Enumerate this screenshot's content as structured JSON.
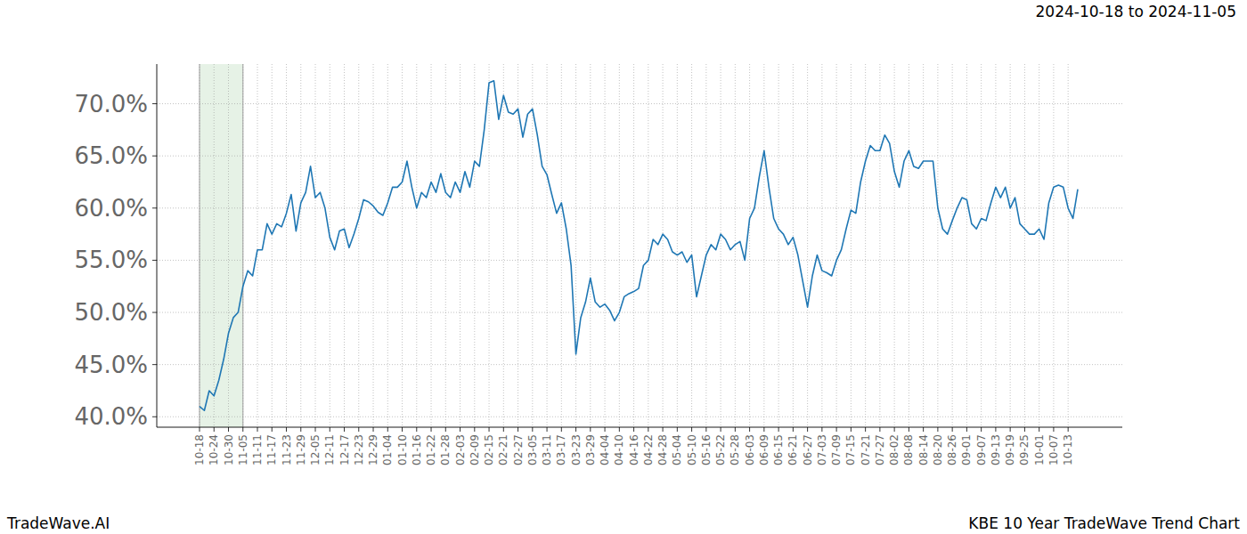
{
  "chart_data": {
    "type": "line",
    "title": "KBE 10 Year TradeWave Trend Chart",
    "subtitle": "2024-10-18 to 2024-11-05",
    "annotations": [
      "TradeWave.AI"
    ],
    "categories": [
      "10-18",
      null,
      null,
      "10-24",
      null,
      null,
      "10-30",
      null,
      null,
      "11-05",
      null,
      null,
      "11-11",
      null,
      null,
      "11-17",
      null,
      null,
      "11-23",
      null,
      null,
      "11-29",
      null,
      null,
      "12-05",
      null,
      null,
      "12-11",
      null,
      null,
      "12-17",
      null,
      null,
      "12-23",
      null,
      null,
      "12-29",
      null,
      null,
      "01-04",
      null,
      null,
      "01-10",
      null,
      null,
      "01-16",
      null,
      null,
      "01-22",
      null,
      null,
      "01-28",
      null,
      null,
      "02-03",
      null,
      null,
      "02-09",
      null,
      null,
      "02-15",
      null,
      null,
      "02-21",
      null,
      null,
      "02-27",
      null,
      null,
      "03-05",
      null,
      null,
      "03-11",
      null,
      null,
      "03-17",
      null,
      null,
      "03-23",
      null,
      null,
      "03-29",
      null,
      null,
      "04-04",
      null,
      null,
      "04-10",
      null,
      null,
      "04-16",
      null,
      null,
      "04-22",
      null,
      null,
      "04-28",
      null,
      null,
      "05-04",
      null,
      null,
      "05-10",
      null,
      null,
      "05-16",
      null,
      null,
      "05-22",
      null,
      null,
      "05-28",
      null,
      null,
      "06-03",
      null,
      null,
      "06-09",
      null,
      null,
      "06-15",
      null,
      null,
      "06-21",
      null,
      null,
      "06-27",
      null,
      null,
      "07-03",
      null,
      null,
      "07-09",
      null,
      null,
      "07-15",
      null,
      null,
      "07-21",
      null,
      null,
      "07-27",
      null,
      null,
      "08-02",
      null,
      null,
      "08-08",
      null,
      null,
      "08-14",
      null,
      null,
      "08-20",
      null,
      null,
      "08-26",
      null,
      null,
      "09-01",
      null,
      null,
      "09-07",
      null,
      null,
      "09-13",
      null,
      null,
      "09-19",
      null,
      null,
      "09-25",
      null,
      null,
      "10-01",
      null,
      null,
      "10-07",
      null,
      null,
      "10-13",
      null,
      null
    ],
    "values": [
      41.0,
      40.6,
      42.5,
      42.0,
      43.5,
      45.5,
      48.0,
      49.5,
      50.0,
      52.5,
      54.0,
      53.5,
      56.0,
      56.0,
      58.5,
      57.5,
      58.5,
      58.2,
      59.5,
      61.3,
      57.8,
      60.5,
      61.5,
      64.0,
      61.0,
      61.5,
      60.0,
      57.2,
      56.0,
      57.8,
      58.0,
      56.2,
      57.5,
      59.0,
      60.8,
      60.6,
      60.2,
      59.6,
      59.3,
      60.5,
      62.0,
      62.0,
      62.5,
      64.5,
      62.0,
      60.0,
      61.5,
      61.0,
      62.5,
      61.5,
      63.3,
      61.5,
      61.0,
      62.5,
      61.5,
      63.5,
      62.0,
      64.5,
      64.0,
      67.5,
      72.0,
      72.2,
      68.5,
      70.8,
      69.2,
      69.0,
      69.5,
      66.8,
      69.0,
      69.5,
      67.0,
      64.0,
      63.2,
      61.3,
      59.5,
      60.5,
      58.0,
      54.5,
      46.0,
      49.5,
      51.0,
      53.3,
      51.0,
      50.5,
      50.8,
      50.2,
      49.2,
      50.0,
      51.5,
      51.8,
      52.0,
      52.3,
      54.5,
      55.0,
      57.0,
      56.5,
      57.5,
      57.0,
      55.8,
      55.5,
      55.8,
      54.8,
      55.5,
      51.5,
      53.5,
      55.5,
      56.5,
      56.0,
      57.5,
      57.0,
      56.0,
      56.5,
      56.8,
      55.0,
      59.0,
      60.0,
      63.0,
      65.5,
      62.0,
      59.0,
      58.0,
      57.5,
      56.5,
      57.2,
      55.5,
      53.0,
      50.5,
      53.5,
      55.5,
      54.0,
      53.8,
      53.5,
      55.0,
      56.0,
      58.0,
      59.8,
      59.5,
      62.5,
      64.5,
      66.0,
      65.5,
      65.5,
      67.0,
      66.2,
      63.5,
      62.0,
      64.5,
      65.5,
      64.0,
      63.8,
      64.5,
      64.5,
      64.5,
      60.0,
      58.0,
      57.5,
      58.8,
      60.0,
      61.0,
      60.8,
      58.5,
      58.0,
      59.0,
      58.8,
      60.5,
      62.0,
      61.0,
      62.0,
      60.0,
      61.0,
      58.5,
      58.0,
      57.5,
      57.5,
      58.0,
      57.0,
      60.5,
      62.0,
      62.2,
      62.0,
      60.0,
      59.0,
      61.8
    ],
    "color": "#1f77b4",
    "highlight": [
      "10-18",
      "11-05"
    ],
    "ylim": [
      39.0,
      73.8
    ],
    "yticks": [
      {
        "value": 40,
        "label": "40.0%"
      },
      {
        "value": 45,
        "label": "45.0%"
      },
      {
        "value": 50,
        "label": "50.0%"
      },
      {
        "value": 55,
        "label": "55.0%"
      },
      {
        "value": 60,
        "label": "60.0%"
      },
      {
        "value": 65,
        "label": "65.0%"
      },
      {
        "value": 70,
        "label": "70.0%"
      }
    ],
    "grid": true
  }
}
